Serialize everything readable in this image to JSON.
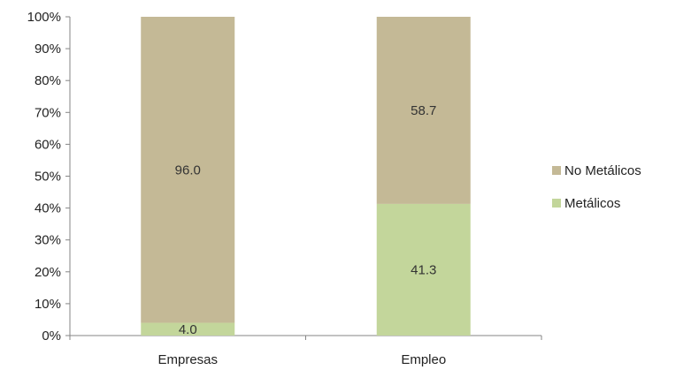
{
  "chart_data": {
    "type": "bar",
    "stacked": true,
    "percent_stacked": true,
    "categories": [
      "Empresas",
      "Empleo"
    ],
    "series": [
      {
        "name": "Metálicos",
        "values": [
          4.0,
          41.3
        ],
        "color": "#c3d69b"
      },
      {
        "name": "No Metálicos",
        "values": [
          96.0,
          58.7
        ],
        "color": "#c4b996"
      }
    ],
    "data_labels": [
      [
        "4.0",
        "41.3"
      ],
      [
        "96.0",
        "58.7"
      ]
    ],
    "ylim": [
      0,
      100
    ],
    "yticks": [
      "0%",
      "10%",
      "20%",
      "30%",
      "40%",
      "50%",
      "60%",
      "70%",
      "80%",
      "90%",
      "100%"
    ],
    "grid": false,
    "legend_position": "right",
    "legend": [
      {
        "name": "No Metálicos",
        "color": "#c4b996"
      },
      {
        "name": "Metálicos",
        "color": "#c3d69b"
      }
    ]
  }
}
